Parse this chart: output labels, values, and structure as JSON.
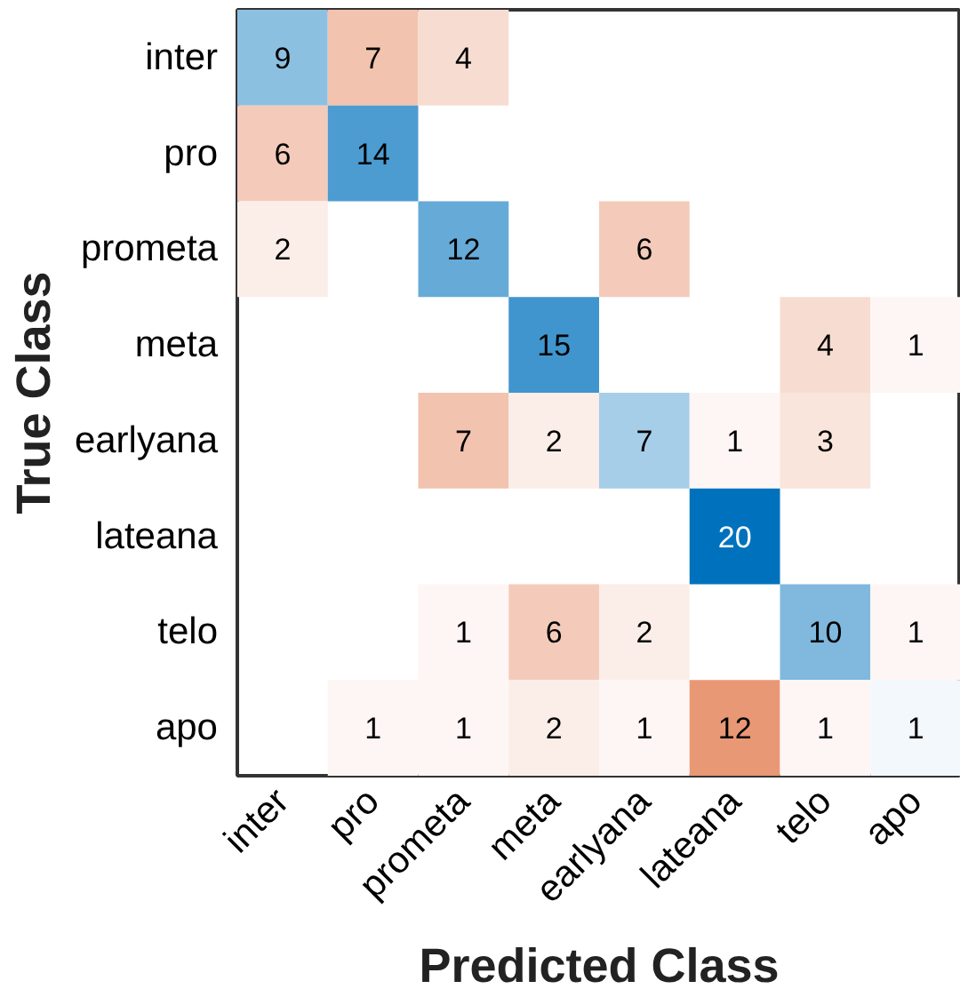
{
  "chart_data": {
    "type": "heatmap",
    "xlabel": "Predicted Class",
    "ylabel": "True Class",
    "categories": [
      "inter",
      "pro",
      "prometa",
      "meta",
      "earlyana",
      "lateana",
      "telo",
      "apo"
    ],
    "y_categories": [
      "inter",
      "pro",
      "prometa",
      "meta",
      "earlyana",
      "lateana",
      "telo",
      "apo"
    ],
    "colors": [
      "#0072bd",
      "#d95319"
    ],
    "data_labels": true,
    "cells": [
      [
        9,
        7,
        4,
        null,
        null,
        null,
        null,
        null
      ],
      [
        6,
        14,
        null,
        null,
        null,
        null,
        null,
        null
      ],
      [
        2,
        null,
        12,
        null,
        6,
        null,
        null,
        null
      ],
      [
        null,
        null,
        null,
        15,
        null,
        null,
        4,
        1
      ],
      [
        null,
        null,
        7,
        2,
        7,
        1,
        3,
        null
      ],
      [
        null,
        null,
        null,
        null,
        null,
        20,
        null,
        null
      ],
      [
        null,
        null,
        1,
        6,
        2,
        null,
        10,
        1
      ],
      [
        null,
        1,
        1,
        2,
        1,
        12,
        1,
        1
      ]
    ]
  }
}
